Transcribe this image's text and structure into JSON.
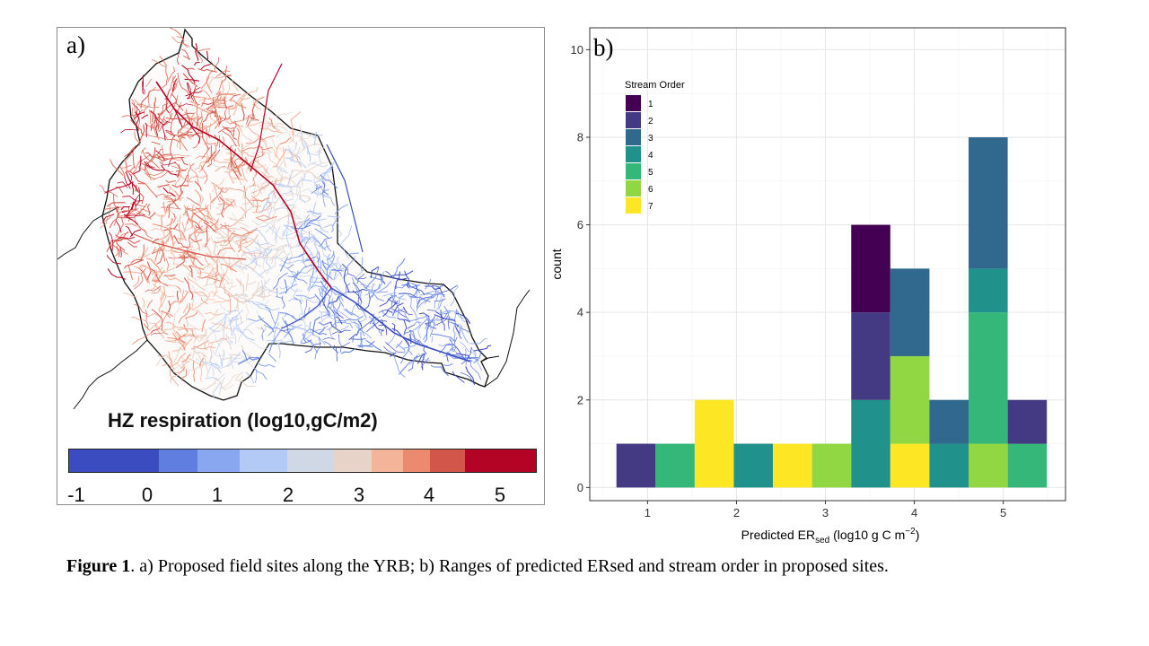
{
  "panel_a": {
    "letter": "a)",
    "map_title": "HZ respiration (log10,gC/m2)",
    "colorbar": {
      "colors": [
        "#3a4cc0",
        "#5f7ee0",
        "#89a6f0",
        "#b3c9f6",
        "#d0d8e6",
        "#e8d3c8",
        "#f4b49a",
        "#ec8a70",
        "#d3564a",
        "#b40426"
      ],
      "ticks": [
        "-1",
        "0",
        "1",
        "2",
        "3",
        "4",
        "5"
      ]
    }
  },
  "chart_data": {
    "type": "bar",
    "panel_label": "b)",
    "ylabel": "count",
    "xlabel_parts": [
      "Predicted ER",
      "sed",
      " (log10 g C m",
      "−2",
      ")"
    ],
    "x_ticks": [
      "1",
      "2",
      "3",
      "4",
      "5"
    ],
    "y_ticks": [
      "0",
      "2",
      "4",
      "6",
      "8",
      "10"
    ],
    "xlim": [
      0.35,
      5.7
    ],
    "ylim": [
      -0.3,
      10.5
    ],
    "grid": true,
    "legend": {
      "title": "Stream Order",
      "position": "top-left",
      "entries": [
        {
          "label": "1",
          "color": "#440154"
        },
        {
          "label": "2",
          "color": "#443983"
        },
        {
          "label": "3",
          "color": "#31688e"
        },
        {
          "label": "4",
          "color": "#21918c"
        },
        {
          "label": "5",
          "color": "#35b779"
        },
        {
          "label": "6",
          "color": "#90d743"
        },
        {
          "label": "7",
          "color": "#fde725"
        }
      ]
    },
    "bins": [
      {
        "x0": 0.65,
        "x1": 1.09,
        "stack": [
          {
            "order": "2",
            "count": 1
          }
        ]
      },
      {
        "x0": 1.09,
        "x1": 1.53,
        "stack": [
          {
            "order": "5",
            "count": 1
          }
        ]
      },
      {
        "x0": 1.53,
        "x1": 1.97,
        "stack": [
          {
            "order": "7",
            "count": 2
          }
        ]
      },
      {
        "x0": 1.97,
        "x1": 2.41,
        "stack": [
          {
            "order": "4",
            "count": 1
          }
        ]
      },
      {
        "x0": 2.41,
        "x1": 2.85,
        "stack": [
          {
            "order": "7",
            "count": 1
          }
        ]
      },
      {
        "x0": 2.85,
        "x1": 3.29,
        "stack": [
          {
            "order": "6",
            "count": 1
          }
        ]
      },
      {
        "x0": 3.29,
        "x1": 3.73,
        "stack": [
          {
            "order": "4",
            "count": 2
          },
          {
            "order": "2",
            "count": 2
          },
          {
            "order": "1",
            "count": 2
          }
        ]
      },
      {
        "x0": 3.73,
        "x1": 4.17,
        "stack": [
          {
            "order": "7",
            "count": 1
          },
          {
            "order": "6",
            "count": 2
          },
          {
            "order": "3",
            "count": 2
          }
        ]
      },
      {
        "x0": 4.17,
        "x1": 4.61,
        "stack": [
          {
            "order": "4",
            "count": 1
          },
          {
            "order": "3",
            "count": 1
          }
        ]
      },
      {
        "x0": 4.61,
        "x1": 5.05,
        "stack": [
          {
            "order": "6",
            "count": 1
          },
          {
            "order": "5",
            "count": 3
          },
          {
            "order": "4",
            "count": 1
          },
          {
            "order": "3",
            "count": 3
          }
        ]
      },
      {
        "x0": 5.05,
        "x1": 5.49,
        "stack": [
          {
            "order": "5",
            "count": 1
          },
          {
            "order": "2",
            "count": 1
          }
        ]
      }
    ]
  },
  "caption": {
    "bold": "Figure 1",
    "text": ". a) Proposed field sites along the YRB; b) Ranges of predicted ERsed and stream order in proposed sites."
  }
}
